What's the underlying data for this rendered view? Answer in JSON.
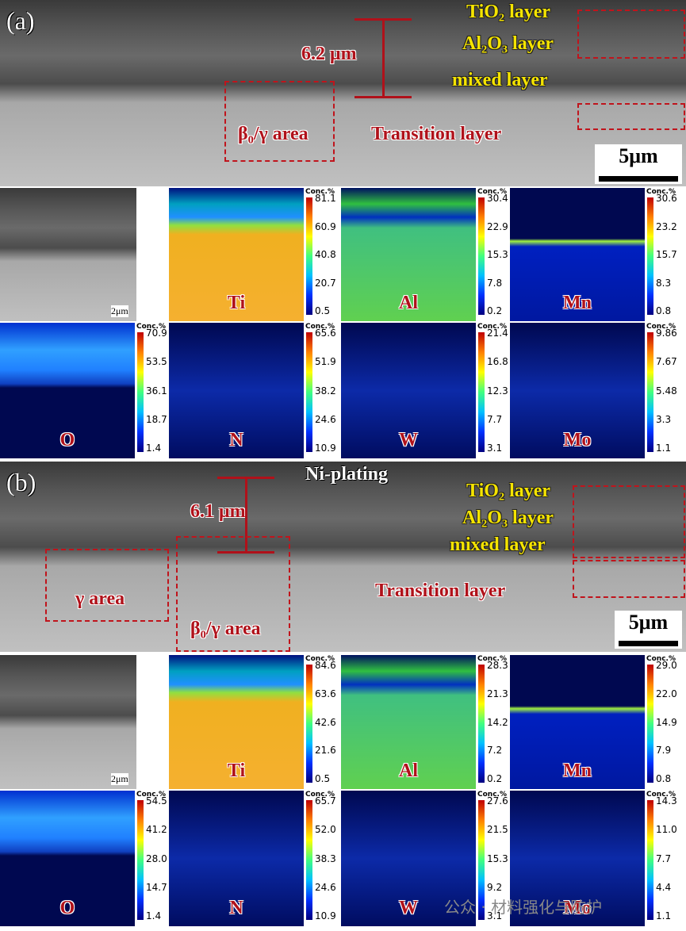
{
  "panels": [
    {
      "label": "(a)",
      "thickness": "6.2 μm",
      "layers": [
        "TiO₂ layer",
        "Al₂O₃ layer",
        "mixed layer"
      ],
      "transition": "Transition layer",
      "areas": [
        "β₀/γ area"
      ],
      "scale": "5μm",
      "small_scale": "2μm",
      "maps": [
        {
          "element": "Ti",
          "unit": "Conc.%",
          "ticks": [
            "81.1",
            "60.9",
            "40.8",
            "20.7",
            "0.5"
          ]
        },
        {
          "element": "Al",
          "unit": "Conc.%",
          "ticks": [
            "30.4",
            "22.9",
            "15.3",
            "7.8",
            "0.2"
          ]
        },
        {
          "element": "Mn",
          "unit": "Conc.%",
          "ticks": [
            "30.6",
            "23.2",
            "15.7",
            "8.3",
            "0.8"
          ]
        },
        {
          "element": "O",
          "unit": "Conc.%",
          "ticks": [
            "70.9",
            "53.5",
            "36.1",
            "18.7",
            "1.4"
          ]
        },
        {
          "element": "N",
          "unit": "Conc.%",
          "ticks": [
            "65.6",
            "51.9",
            "38.2",
            "24.6",
            "10.9"
          ]
        },
        {
          "element": "W",
          "unit": "Conc.%",
          "ticks": [
            "21.4",
            "16.8",
            "12.3",
            "7.7",
            "3.1"
          ]
        },
        {
          "element": "Mo",
          "unit": "Conc.%",
          "ticks": [
            "9.86",
            "7.67",
            "5.48",
            "3.3",
            "1.1"
          ]
        }
      ]
    },
    {
      "label": "(b)",
      "coating": "Ni-plating",
      "thickness": "6.1 μm",
      "layers": [
        "TiO₂ layer",
        "Al₂O₃ layer",
        "mixed layer"
      ],
      "transition": "Transition layer",
      "areas": [
        "γ area",
        "β₀/γ area"
      ],
      "scale": "5μm",
      "small_scale": "2μm",
      "maps": [
        {
          "element": "Ti",
          "unit": "Conc.%",
          "ticks": [
            "84.6",
            "63.6",
            "42.6",
            "21.6",
            "0.5"
          ]
        },
        {
          "element": "Al",
          "unit": "Conc.%",
          "ticks": [
            "28.3",
            "21.3",
            "14.2",
            "7.2",
            "0.2"
          ]
        },
        {
          "element": "Mn",
          "unit": "Conc.%",
          "ticks": [
            "29.0",
            "22.0",
            "14.9",
            "7.9",
            "0.8"
          ]
        },
        {
          "element": "O",
          "unit": "Conc.%",
          "ticks": [
            "54.5",
            "41.2",
            "28.0",
            "14.7",
            "1.4"
          ]
        },
        {
          "element": "N",
          "unit": "Conc.%",
          "ticks": [
            "65.7",
            "52.0",
            "38.3",
            "24.6",
            "10.9"
          ]
        },
        {
          "element": "W",
          "unit": "Conc.%",
          "ticks": [
            "27.6",
            "21.5",
            "15.3",
            "9.2",
            "3.1"
          ]
        },
        {
          "element": "Mo",
          "unit": "Conc.%",
          "ticks": [
            "14.3",
            "11.0",
            "7.7",
            "4.4",
            "1.1"
          ]
        }
      ]
    }
  ],
  "watermark": "公众 · 材料强化与防护"
}
